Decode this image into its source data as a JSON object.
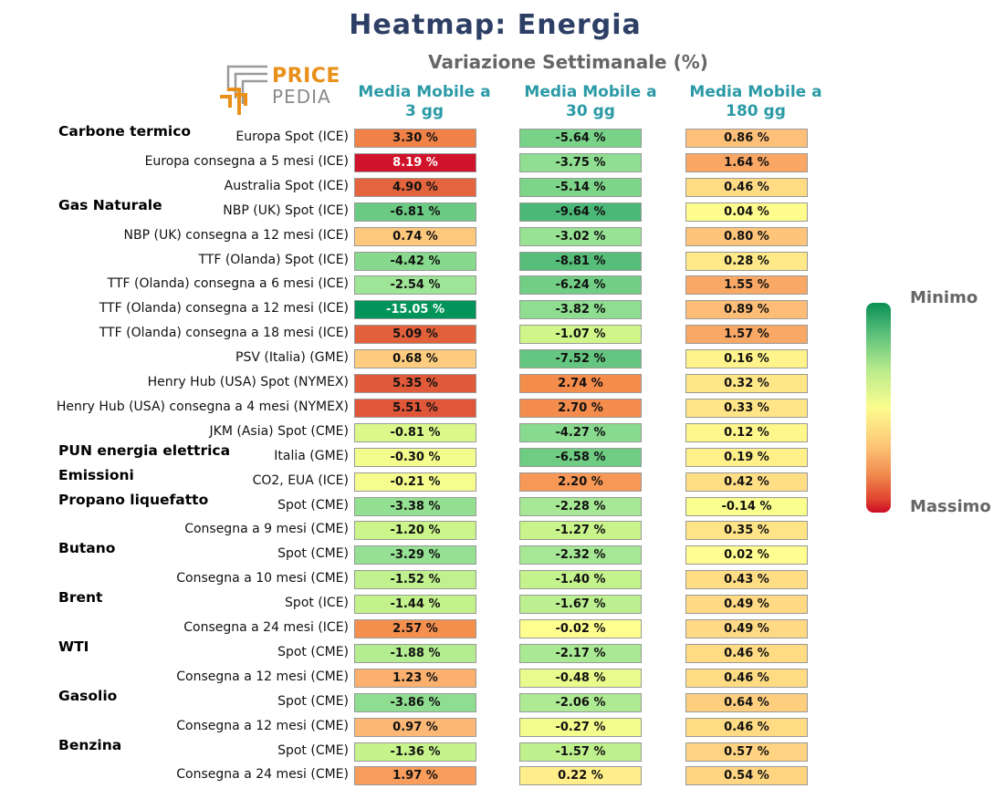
{
  "title": "Heatmap: Energia",
  "subtitle": "Variazione Settimanale (%)",
  "logo": {
    "price": "PRICE",
    "pedia": "PEDIA"
  },
  "legend": {
    "min_label": "Minimo",
    "max_label": "Massimo"
  },
  "colors": {
    "title": "#2e3f66",
    "header": "#2b9aa6",
    "min": "#0a8f55",
    "mid": "#fcfc8e",
    "max": "#cc0a25"
  },
  "chart_data": {
    "type": "heatmap",
    "columns": [
      "Media Mobile a 3 gg",
      "Media Mobile a 30 gg",
      "Media Mobile a 180 gg"
    ],
    "column_lines": [
      [
        "Media Mobile a",
        "3 gg"
      ],
      [
        "Media Mobile a",
        "30 gg"
      ],
      [
        "Media Mobile a",
        "180 gg"
      ]
    ],
    "unit": "%",
    "groups": [
      {
        "name": "Carbone termico",
        "rows": [
          {
            "label": "Europa Spot (ICE)",
            "values": [
              3.3,
              -5.64,
              0.86
            ]
          },
          {
            "label": "Europa consegna a 5 mesi (ICE)",
            "values": [
              8.19,
              -3.75,
              1.64
            ]
          },
          {
            "label": "Australia Spot (ICE)",
            "values": [
              4.9,
              -5.14,
              0.46
            ]
          }
        ]
      },
      {
        "name": "Gas Naturale",
        "rows": [
          {
            "label": "NBP (UK) Spot (ICE)",
            "values": [
              -6.81,
              -9.64,
              0.04
            ]
          },
          {
            "label": "NBP (UK) consegna a 12 mesi (ICE)",
            "values": [
              0.74,
              -3.02,
              0.8
            ]
          },
          {
            "label": "TTF (Olanda) Spot (ICE)",
            "values": [
              -4.42,
              -8.81,
              0.28
            ]
          },
          {
            "label": "TTF (Olanda) consegna a 6 mesi (ICE)",
            "values": [
              -2.54,
              -6.24,
              1.55
            ]
          },
          {
            "label": "TTF (Olanda) consegna a 12 mesi (ICE)",
            "values": [
              -15.05,
              -3.82,
              0.89
            ]
          },
          {
            "label": "TTF (Olanda) consegna a 18 mesi (ICE)",
            "values": [
              5.09,
              -1.07,
              1.57
            ]
          },
          {
            "label": "PSV (Italia) (GME)",
            "values": [
              0.68,
              -7.52,
              0.16
            ]
          },
          {
            "label": "Henry Hub (USA) Spot (NYMEX)",
            "values": [
              5.35,
              2.74,
              0.32
            ]
          },
          {
            "label": "Henry Hub (USA) consegna a 4 mesi (NYMEX)",
            "values": [
              5.51,
              2.7,
              0.33
            ]
          },
          {
            "label": "JKM (Asia) Spot (CME)",
            "values": [
              -0.81,
              -4.27,
              0.12
            ]
          }
        ]
      },
      {
        "name": "PUN energia elettrica",
        "rows": [
          {
            "label": "Italia (GME)",
            "values": [
              -0.3,
              -6.58,
              0.19
            ]
          }
        ]
      },
      {
        "name": "Emissioni",
        "rows": [
          {
            "label": "CO2, EUA (ICE)",
            "values": [
              -0.21,
              2.2,
              0.42
            ]
          }
        ]
      },
      {
        "name": "Propano liquefatto",
        "rows": [
          {
            "label": "Spot (CME)",
            "values": [
              -3.38,
              -2.28,
              -0.14
            ]
          },
          {
            "label": "Consegna a 9 mesi (CME)",
            "values": [
              -1.2,
              -1.27,
              0.35
            ]
          }
        ]
      },
      {
        "name": "Butano",
        "rows": [
          {
            "label": "Spot (CME)",
            "values": [
              -3.29,
              -2.32,
              0.02
            ]
          },
          {
            "label": "Consegna a 10 mesi (CME)",
            "values": [
              -1.52,
              -1.4,
              0.43
            ]
          }
        ]
      },
      {
        "name": "Brent",
        "rows": [
          {
            "label": "Spot (ICE)",
            "values": [
              -1.44,
              -1.67,
              0.49
            ]
          },
          {
            "label": "Consegna a 24 mesi (ICE)",
            "values": [
              2.57,
              -0.02,
              0.49
            ]
          }
        ]
      },
      {
        "name": "WTI",
        "rows": [
          {
            "label": "Spot (CME)",
            "values": [
              -1.88,
              -2.17,
              0.46
            ]
          },
          {
            "label": "Consegna a 12 mesi (CME)",
            "values": [
              1.23,
              -0.48,
              0.46
            ]
          }
        ]
      },
      {
        "name": "Gasolio",
        "rows": [
          {
            "label": "Spot (CME)",
            "values": [
              -3.86,
              -2.06,
              0.64
            ]
          },
          {
            "label": "Consegna a 12 mesi (CME)",
            "values": [
              0.97,
              -0.27,
              0.46
            ]
          }
        ]
      },
      {
        "name": "Benzina",
        "rows": [
          {
            "label": "Spot (CME)",
            "values": [
              -1.36,
              -1.57,
              0.57
            ]
          },
          {
            "label": "Consegna a 24 mesi (CME)",
            "values": [
              1.97,
              0.22,
              0.54
            ]
          }
        ]
      }
    ]
  }
}
